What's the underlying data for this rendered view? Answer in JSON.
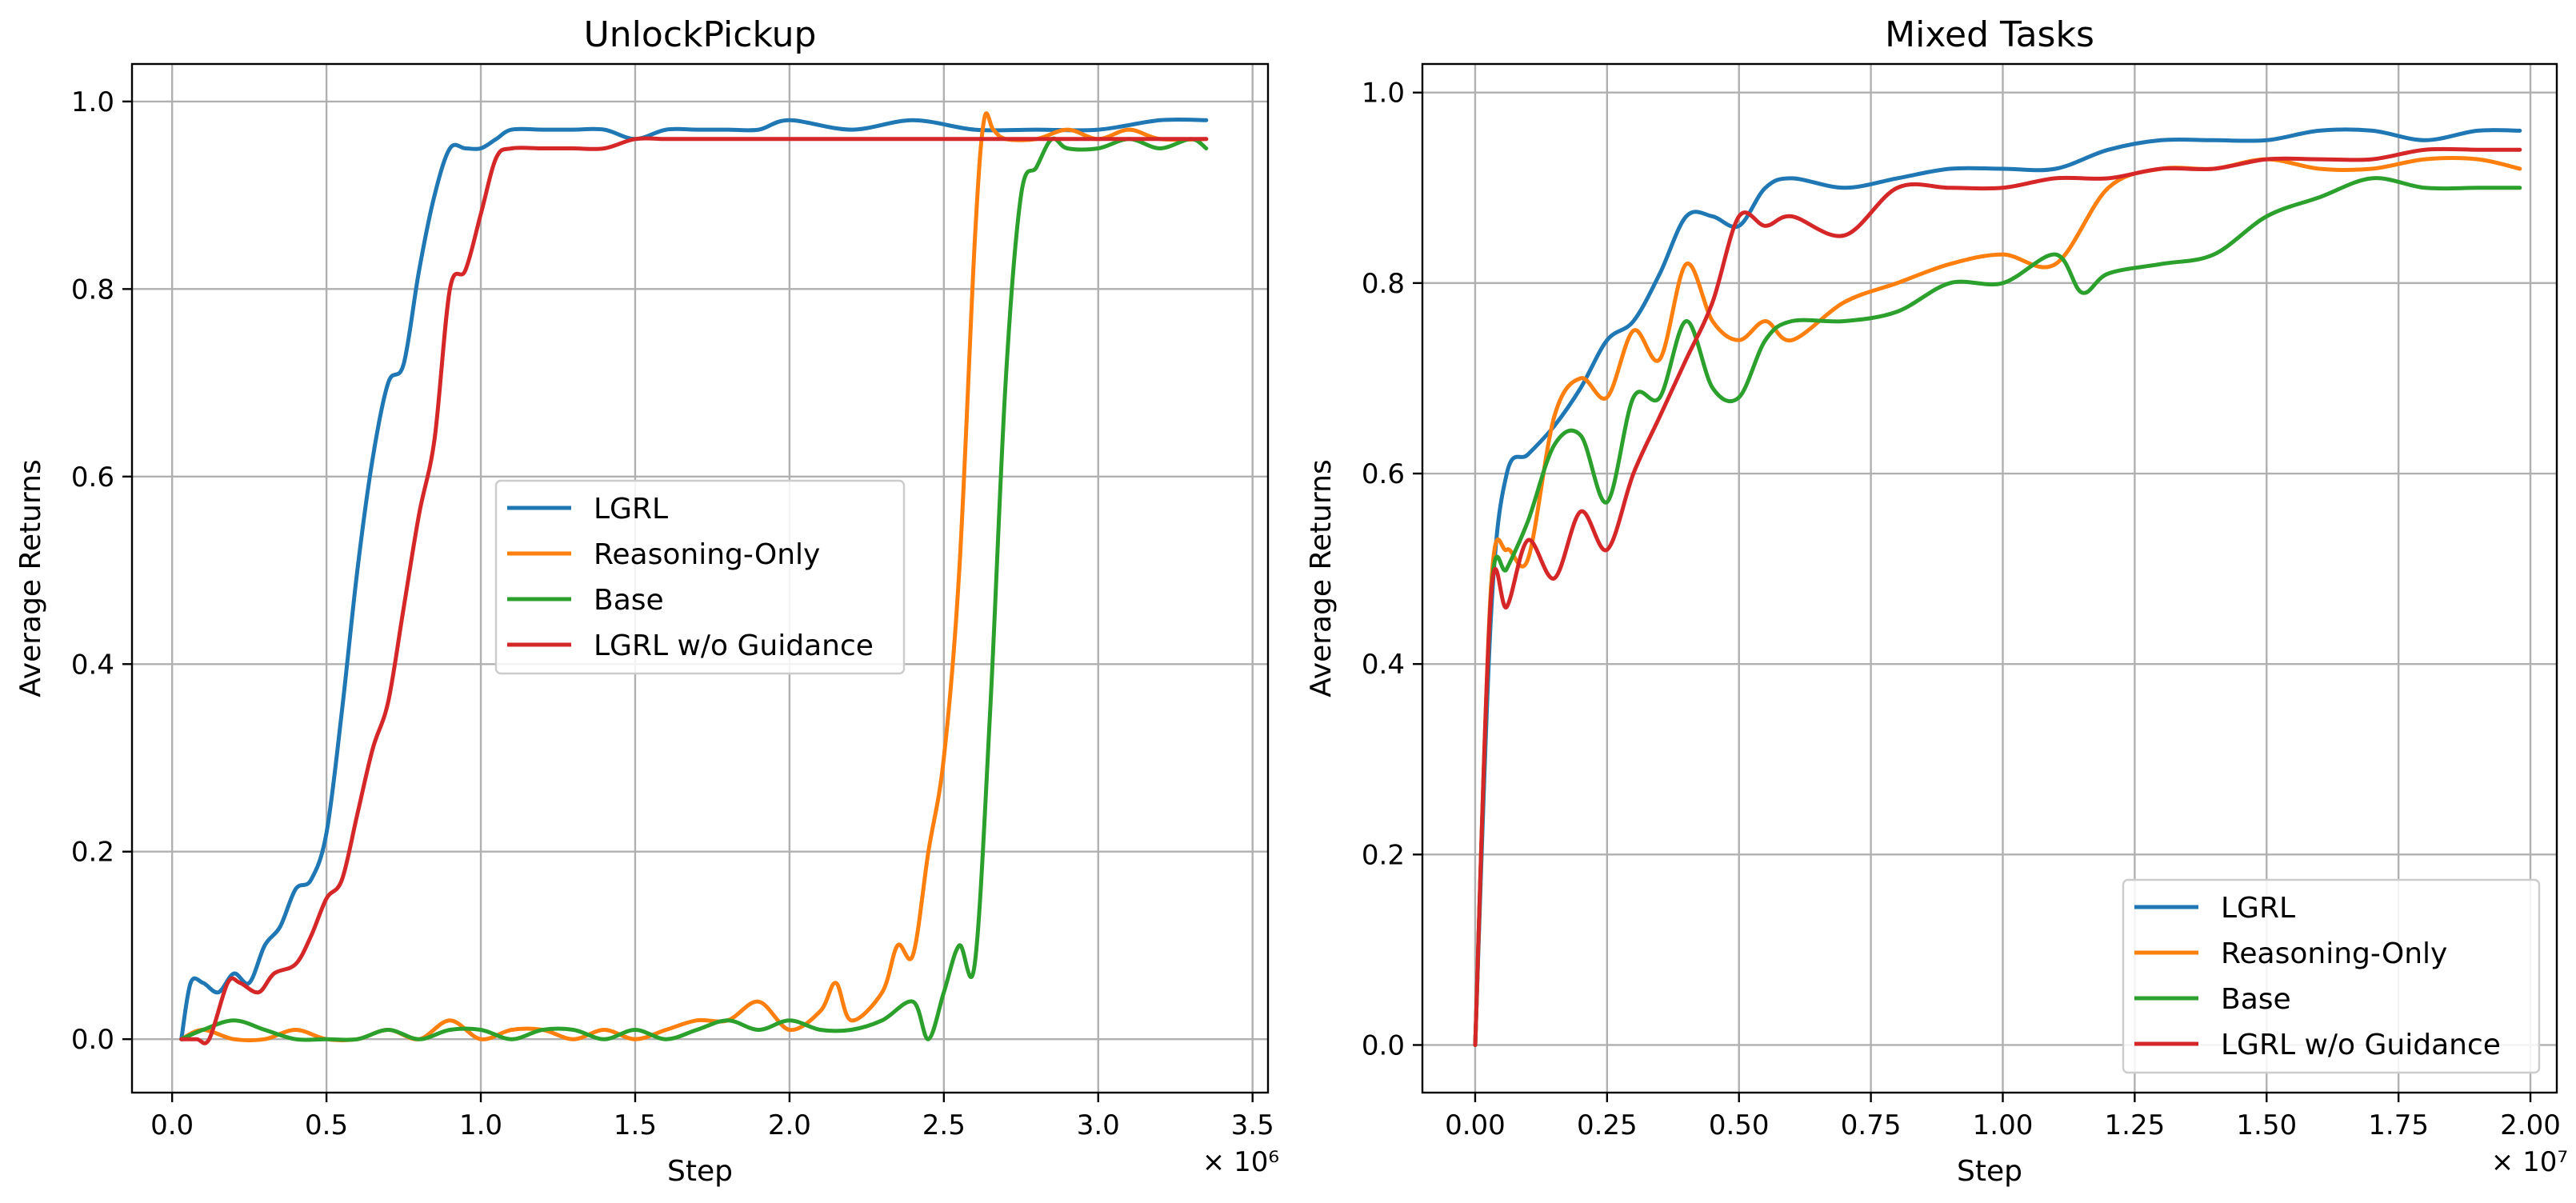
{
  "chart_data": [
    {
      "type": "line",
      "title": "UnlockPickup",
      "xlabel": "Step",
      "ylabel": "Average Returns",
      "x_multiplier": "× 10⁶",
      "xlim": [
        -0.13,
        3.55
      ],
      "ylim": [
        -0.057,
        1.04
      ],
      "xticks": [
        0.0,
        0.5,
        1.0,
        1.5,
        2.0,
        2.5,
        3.0,
        3.5
      ],
      "xtick_labels": [
        "0.0",
        "0.5",
        "1.0",
        "1.5",
        "2.0",
        "2.5",
        "3.0",
        "3.5"
      ],
      "yticks": [
        0.0,
        0.2,
        0.4,
        0.6,
        0.8,
        1.0
      ],
      "ytick_labels": [
        "0.0",
        "0.2",
        "0.4",
        "0.6",
        "0.8",
        "1.0"
      ],
      "grid": true,
      "legend_position": "center",
      "series": [
        {
          "name": "LGRL",
          "color": "#1f77b4",
          "x": [
            0.03,
            0.06,
            0.1,
            0.15,
            0.2,
            0.25,
            0.3,
            0.35,
            0.4,
            0.45,
            0.5,
            0.55,
            0.6,
            0.65,
            0.7,
            0.75,
            0.8,
            0.85,
            0.9,
            0.95,
            1.0,
            1.05,
            1.1,
            1.2,
            1.3,
            1.4,
            1.5,
            1.6,
            1.7,
            1.8,
            1.9,
            2.0,
            2.2,
            2.4,
            2.6,
            2.8,
            3.0,
            3.2,
            3.35
          ],
          "y": [
            0.0,
            0.06,
            0.06,
            0.05,
            0.07,
            0.06,
            0.1,
            0.12,
            0.16,
            0.17,
            0.22,
            0.35,
            0.5,
            0.62,
            0.7,
            0.72,
            0.82,
            0.9,
            0.95,
            0.95,
            0.95,
            0.96,
            0.97,
            0.97,
            0.97,
            0.97,
            0.96,
            0.97,
            0.97,
            0.97,
            0.97,
            0.98,
            0.97,
            0.98,
            0.97,
            0.97,
            0.97,
            0.98,
            0.98
          ]
        },
        {
          "name": "Reasoning-Only",
          "color": "#ff7f0e",
          "x": [
            0.03,
            0.1,
            0.2,
            0.3,
            0.4,
            0.5,
            0.6,
            0.7,
            0.8,
            0.9,
            1.0,
            1.1,
            1.2,
            1.3,
            1.4,
            1.5,
            1.6,
            1.7,
            1.8,
            1.9,
            2.0,
            2.1,
            2.15,
            2.2,
            2.3,
            2.35,
            2.4,
            2.45,
            2.5,
            2.55,
            2.6,
            2.63,
            2.66,
            2.7,
            2.8,
            2.9,
            3.0,
            3.1,
            3.2,
            3.35
          ],
          "y": [
            0.0,
            0.01,
            0.0,
            0.0,
            0.01,
            0.0,
            0.0,
            0.01,
            0.0,
            0.02,
            0.0,
            0.01,
            0.01,
            0.0,
            0.01,
            0.0,
            0.01,
            0.02,
            0.02,
            0.04,
            0.01,
            0.03,
            0.06,
            0.02,
            0.05,
            0.1,
            0.09,
            0.2,
            0.3,
            0.5,
            0.85,
            0.98,
            0.97,
            0.96,
            0.96,
            0.97,
            0.96,
            0.97,
            0.96,
            0.96
          ]
        },
        {
          "name": "Base",
          "color": "#2ca02c",
          "x": [
            0.03,
            0.1,
            0.2,
            0.3,
            0.4,
            0.5,
            0.6,
            0.7,
            0.8,
            0.9,
            1.0,
            1.1,
            1.2,
            1.3,
            1.4,
            1.5,
            1.6,
            1.7,
            1.8,
            1.9,
            2.0,
            2.1,
            2.2,
            2.3,
            2.4,
            2.45,
            2.5,
            2.55,
            2.6,
            2.65,
            2.7,
            2.75,
            2.8,
            2.85,
            2.9,
            3.0,
            3.1,
            3.2,
            3.3,
            3.35
          ],
          "y": [
            0.0,
            0.01,
            0.02,
            0.01,
            0.0,
            0.0,
            0.0,
            0.01,
            0.0,
            0.01,
            0.01,
            0.0,
            0.01,
            0.01,
            0.0,
            0.01,
            0.0,
            0.01,
            0.02,
            0.01,
            0.02,
            0.01,
            0.01,
            0.02,
            0.04,
            0.0,
            0.05,
            0.1,
            0.08,
            0.35,
            0.7,
            0.9,
            0.93,
            0.96,
            0.95,
            0.95,
            0.96,
            0.95,
            0.96,
            0.95
          ]
        },
        {
          "name": "LGRL w/o Guidance",
          "color": "#d62728",
          "x": [
            0.03,
            0.08,
            0.12,
            0.18,
            0.22,
            0.28,
            0.33,
            0.4,
            0.45,
            0.5,
            0.55,
            0.6,
            0.65,
            0.7,
            0.75,
            0.8,
            0.85,
            0.9,
            0.95,
            1.0,
            1.05,
            1.1,
            1.2,
            1.3,
            1.4,
            1.5,
            1.6,
            1.7,
            1.8,
            1.9,
            2.0,
            2.2,
            2.4,
            2.6,
            2.8,
            3.0,
            3.2,
            3.35
          ],
          "y": [
            0.0,
            0.0,
            0.0,
            0.06,
            0.06,
            0.05,
            0.07,
            0.08,
            0.11,
            0.15,
            0.17,
            0.24,
            0.31,
            0.36,
            0.46,
            0.56,
            0.64,
            0.8,
            0.82,
            0.88,
            0.94,
            0.95,
            0.95,
            0.95,
            0.95,
            0.96,
            0.96,
            0.96,
            0.96,
            0.96,
            0.96,
            0.96,
            0.96,
            0.96,
            0.96,
            0.96,
            0.96,
            0.96
          ]
        }
      ]
    },
    {
      "type": "line",
      "title": "Mixed Tasks",
      "xlabel": "Step",
      "ylabel": "Average Returns",
      "x_multiplier": "× 10⁷",
      "xlim": [
        -0.1,
        2.05
      ],
      "ylim": [
        -0.05,
        1.03
      ],
      "xticks": [
        0.0,
        0.25,
        0.5,
        0.75,
        1.0,
        1.25,
        1.5,
        1.75,
        2.0
      ],
      "xtick_labels": [
        "0.00",
        "0.25",
        "0.50",
        "0.75",
        "1.00",
        "1.25",
        "1.50",
        "1.75",
        "2.00"
      ],
      "yticks": [
        0.0,
        0.2,
        0.4,
        0.6,
        0.8,
        1.0
      ],
      "ytick_labels": [
        "0.0",
        "0.2",
        "0.4",
        "0.6",
        "0.8",
        "1.0"
      ],
      "grid": true,
      "legend_position": "lower right",
      "series": [
        {
          "name": "LGRL",
          "color": "#1f77b4",
          "x": [
            0.0,
            0.03,
            0.06,
            0.1,
            0.15,
            0.2,
            0.25,
            0.3,
            0.35,
            0.4,
            0.45,
            0.5,
            0.55,
            0.6,
            0.7,
            0.8,
            0.9,
            1.0,
            1.1,
            1.2,
            1.3,
            1.4,
            1.5,
            1.6,
            1.7,
            1.8,
            1.9,
            1.98
          ],
          "y": [
            0.0,
            0.45,
            0.6,
            0.62,
            0.65,
            0.69,
            0.74,
            0.76,
            0.81,
            0.87,
            0.87,
            0.86,
            0.9,
            0.91,
            0.9,
            0.91,
            0.92,
            0.92,
            0.92,
            0.94,
            0.95,
            0.95,
            0.95,
            0.96,
            0.96,
            0.95,
            0.96,
            0.96
          ]
        },
        {
          "name": "Reasoning-Only",
          "color": "#ff7f0e",
          "x": [
            0.0,
            0.03,
            0.06,
            0.1,
            0.15,
            0.2,
            0.25,
            0.3,
            0.35,
            0.4,
            0.45,
            0.5,
            0.55,
            0.6,
            0.7,
            0.8,
            0.9,
            1.0,
            1.1,
            1.2,
            1.3,
            1.4,
            1.5,
            1.6,
            1.7,
            1.8,
            1.9,
            1.98
          ],
          "y": [
            0.0,
            0.48,
            0.52,
            0.51,
            0.66,
            0.7,
            0.68,
            0.75,
            0.72,
            0.82,
            0.76,
            0.74,
            0.76,
            0.74,
            0.78,
            0.8,
            0.82,
            0.83,
            0.82,
            0.9,
            0.92,
            0.92,
            0.93,
            0.92,
            0.92,
            0.93,
            0.93,
            0.92
          ]
        },
        {
          "name": "Base",
          "color": "#2ca02c",
          "x": [
            0.0,
            0.03,
            0.06,
            0.1,
            0.15,
            0.2,
            0.25,
            0.3,
            0.35,
            0.4,
            0.45,
            0.5,
            0.55,
            0.6,
            0.7,
            0.8,
            0.9,
            1.0,
            1.1,
            1.15,
            1.2,
            1.3,
            1.4,
            1.5,
            1.6,
            1.7,
            1.8,
            1.9,
            1.98
          ],
          "y": [
            0.0,
            0.47,
            0.5,
            0.55,
            0.63,
            0.64,
            0.57,
            0.68,
            0.68,
            0.76,
            0.69,
            0.68,
            0.74,
            0.76,
            0.76,
            0.77,
            0.8,
            0.8,
            0.83,
            0.79,
            0.81,
            0.82,
            0.83,
            0.87,
            0.89,
            0.91,
            0.9,
            0.9,
            0.9
          ]
        },
        {
          "name": "LGRL w/o Guidance",
          "color": "#d62728",
          "x": [
            0.0,
            0.03,
            0.06,
            0.1,
            0.15,
            0.2,
            0.25,
            0.3,
            0.35,
            0.4,
            0.45,
            0.5,
            0.55,
            0.6,
            0.7,
            0.8,
            0.9,
            1.0,
            1.1,
            1.2,
            1.3,
            1.4,
            1.5,
            1.6,
            1.7,
            1.8,
            1.9,
            1.98
          ],
          "y": [
            0.0,
            0.47,
            0.46,
            0.53,
            0.49,
            0.56,
            0.52,
            0.6,
            0.66,
            0.72,
            0.78,
            0.87,
            0.86,
            0.87,
            0.85,
            0.9,
            0.9,
            0.9,
            0.91,
            0.91,
            0.92,
            0.92,
            0.93,
            0.93,
            0.93,
            0.94,
            0.94,
            0.94
          ]
        }
      ]
    }
  ]
}
